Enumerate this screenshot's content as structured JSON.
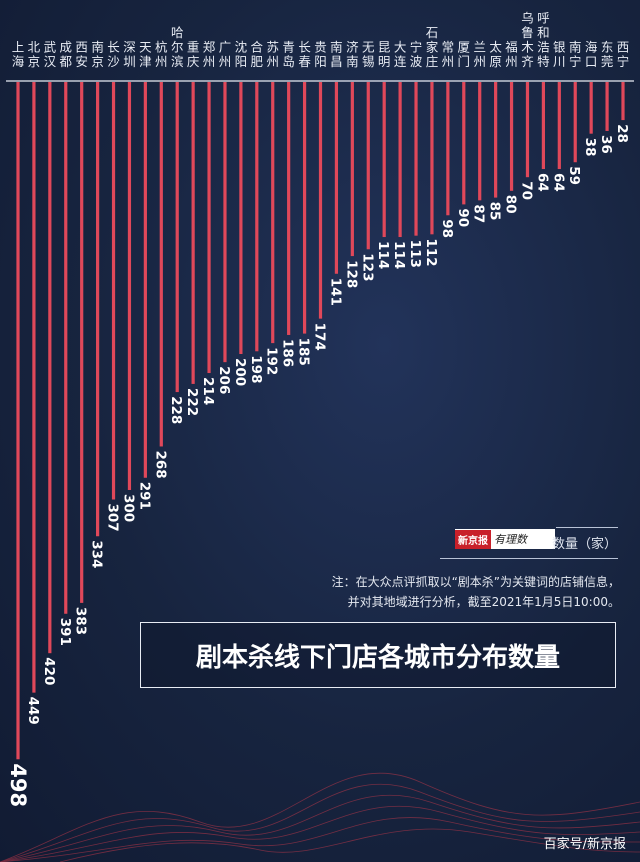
{
  "chart_data": {
    "type": "bar",
    "orientation": "vertical-down",
    "title": "剧本杀线下门店各城市分布数量",
    "ylabel": "数量（家）",
    "categories": [
      "上海",
      "北京",
      "武汉",
      "成都",
      "西安",
      "南京",
      "长沙",
      "深圳",
      "天津",
      "杭州",
      "哈尔滨",
      "重庆",
      "郑州",
      "广州",
      "沈阳",
      "合肥",
      "苏州",
      "青岛",
      "长春",
      "贵阳",
      "南昌",
      "济南",
      "无锡",
      "昆明",
      "大连",
      "宁波",
      "石家庄",
      "常州",
      "厦门",
      "兰州",
      "太原",
      "福州",
      "乌鲁木齐",
      "呼和浩特",
      "银川",
      "南宁",
      "海口",
      "东莞",
      "西宁"
    ],
    "values": [
      498,
      449,
      420,
      391,
      383,
      334,
      307,
      300,
      291,
      268,
      228,
      222,
      214,
      206,
      200,
      198,
      192,
      186,
      185,
      174,
      141,
      128,
      123,
      114,
      114,
      113,
      112,
      98,
      90,
      87,
      85,
      80,
      70,
      64,
      64,
      59,
      38,
      36,
      28
    ],
    "bar_color": "#e0485a",
    "background_color": "#17243f"
  },
  "unit_label": "数量（家）",
  "logo_text": "新京报 有理数",
  "note_lines": [
    "注：在大众点评抓取以“剧本杀”为关键词的店铺信息，",
    "并对其地域进行分析，截至2021年1月5日10:00。"
  ],
  "source": "百家号/新京报"
}
